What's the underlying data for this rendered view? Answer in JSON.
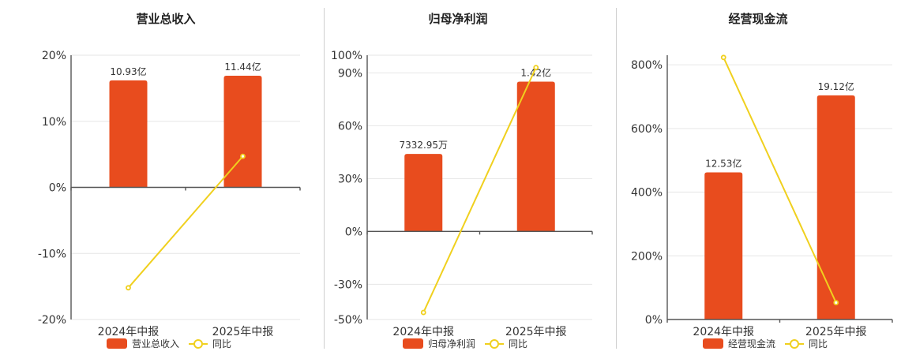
{
  "colors": {
    "bar": "#E84C1E",
    "line": "#F0D01E",
    "grid": "#E6E6E6",
    "axis": "#555555"
  },
  "legend_line_label": "同比",
  "chart_data": [
    {
      "type": "bar",
      "title": "营业总收入",
      "categories": [
        "2024年中报",
        "2025年中报"
      ],
      "bar_labels": [
        "10.93亿",
        "11.44亿"
      ],
      "ylim": [
        -20,
        20
      ],
      "yticks": [
        20,
        10,
        0,
        -10,
        -20
      ],
      "ytick_labels": [
        "20%",
        "10%",
        "0%",
        "-10%",
        "-20%"
      ],
      "bar_values": [
        16.2,
        16.9
      ],
      "series": [
        {
          "name": "营业总收入",
          "type": "bar",
          "values": [
            10.93,
            11.44
          ]
        },
        {
          "name": "同比",
          "type": "line",
          "values": [
            -15.2,
            4.7
          ]
        }
      ]
    },
    {
      "type": "bar",
      "title": "归母净利润",
      "categories": [
        "2024年中报",
        "2025年中报"
      ],
      "bar_labels": [
        "7332.95万",
        "1.42亿"
      ],
      "ylim": [
        -50,
        100
      ],
      "yticks": [
        100,
        90,
        60,
        30,
        0,
        -30,
        -50
      ],
      "ytick_labels": [
        "100%",
        "90%",
        "60%",
        "30%",
        "0%",
        "-30%",
        "-50%"
      ],
      "bar_values": [
        44,
        85
      ],
      "series": [
        {
          "name": "归母净利润",
          "type": "bar",
          "values": [
            0.733295,
            1.42
          ]
        },
        {
          "name": "同比",
          "type": "line",
          "values": [
            -46,
            93
          ]
        }
      ]
    },
    {
      "type": "bar",
      "title": "经营现金流",
      "categories": [
        "2024年中报",
        "2025年中报"
      ],
      "bar_labels": [
        "12.53亿",
        "19.12亿"
      ],
      "ylim": [
        0,
        830
      ],
      "yticks": [
        800,
        600,
        400,
        200,
        0
      ],
      "ytick_labels": [
        "800%",
        "600%",
        "400%",
        "200%",
        "0%"
      ],
      "bar_values": [
        462,
        704
      ],
      "series": [
        {
          "name": "经营现金流",
          "type": "bar",
          "values": [
            12.53,
            19.12
          ]
        },
        {
          "name": "同比",
          "type": "line",
          "values": [
            823,
            53
          ]
        }
      ]
    }
  ]
}
